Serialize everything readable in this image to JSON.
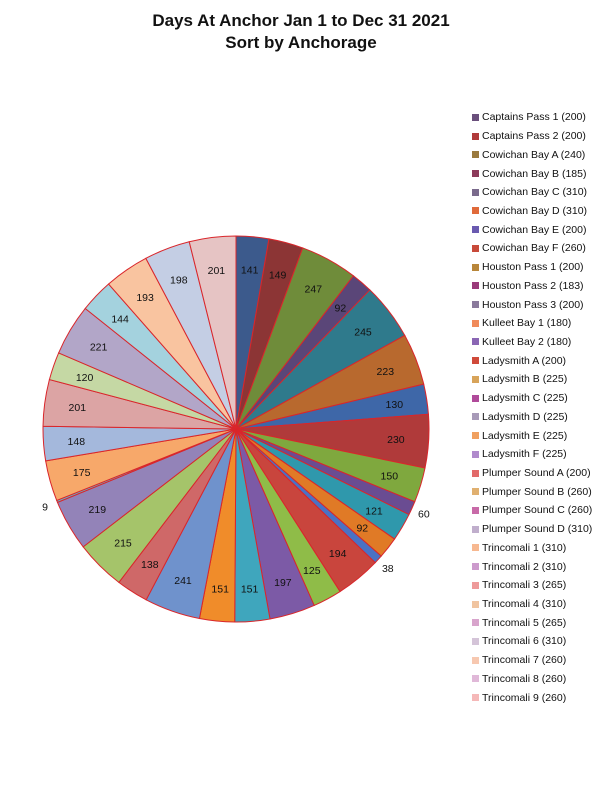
{
  "chart_data": {
    "type": "pie",
    "title": "Days At Anchor Jan 1 to Dec 31 2021",
    "subtitle": "Sort by Anchorage",
    "legend_position": "right",
    "slice_border_color": "#d9262b",
    "categories": [
      "Captains Pass 1 (200)",
      "Captains Pass 2 (200)",
      "Cowichan Bay A (240)",
      "Cowichan Bay B (185)",
      "Cowichan Bay C (310)",
      "Cowichan Bay D (310)",
      "Cowichan Bay E (200)",
      "Cowichan Bay F (260)",
      "Houston Pass 1 (200)",
      "Houston Pass 2 (183)",
      "Houston Pass 3 (200)",
      "Kulleet Bay 1 (180)",
      "Kulleet Bay 2 (180)",
      "Ladysmith A (200)",
      "Ladysmith B (225)",
      "Ladysmith C (225)",
      "Ladysmith D (225)",
      "Ladysmith E (225)",
      "Ladysmith F (225)",
      "Plumper Sound A (200)",
      "Plumper Sound B (260)",
      "Plumper Sound C (260)",
      "Plumper Sound D (310)",
      "Trincomali 1 (310)",
      "Trincomali 2 (310)",
      "Trincomali 3 (265)",
      "Trincomali 4 (310)",
      "Trincomali 5 (265)",
      "Trincomali 6 (310)",
      "Trincomali 7 (260)",
      "Trincomali 8 (260)",
      "Trincomali 9 (260)"
    ],
    "values": [
      141,
      149,
      247,
      92,
      245,
      223,
      130,
      230,
      150,
      60,
      121,
      92,
      38,
      194,
      125,
      197,
      151,
      151,
      241,
      138,
      215,
      219,
      9,
      175,
      148,
      201,
      120,
      221,
      144,
      193,
      198,
      201
    ],
    "slice_colors": [
      "#3c5a8c",
      "#8c3535",
      "#6f8c3a",
      "#5a4678",
      "#2f7a8c",
      "#b8692e",
      "#3e67a8",
      "#b03a3a",
      "#7fa83e",
      "#6a4c92",
      "#2f98ac",
      "#e07a26",
      "#4a72c4",
      "#c9453d",
      "#8fbc48",
      "#7c5aa6",
      "#3fa6bd",
      "#f08c2a",
      "#6f92cc",
      "#cf6868",
      "#a5c46a",
      "#9383b8",
      "#66b8cc",
      "#f7a86a",
      "#a4b8dc",
      "#dca4a4",
      "#c5d8a4",
      "#b2a6c8",
      "#a4d2de",
      "#f9c4a0",
      "#c4cee4",
      "#e6c4c4"
    ],
    "legend_colors": [
      "#6a4f7c",
      "#b03a3a",
      "#9a7a3e",
      "#8c3a5a",
      "#7a6a8c",
      "#e06a3a",
      "#6a5ab0",
      "#c84a3a",
      "#b8863a",
      "#9a3a7a",
      "#8a7a9c",
      "#f08a5a",
      "#8a66b4",
      "#d04a3a",
      "#d8a45a",
      "#b04a9a",
      "#a89ab8",
      "#f0a060",
      "#b08acc",
      "#e26a6a",
      "#e0b070",
      "#c86aa8",
      "#c0aecc",
      "#f7b890",
      "#cc9acc",
      "#ee9a9a",
      "#f0c4a0",
      "#d8a4cc",
      "#d4c4d8",
      "#f7c8b0",
      "#e0b8d8",
      "#f5b8b8"
    ]
  }
}
